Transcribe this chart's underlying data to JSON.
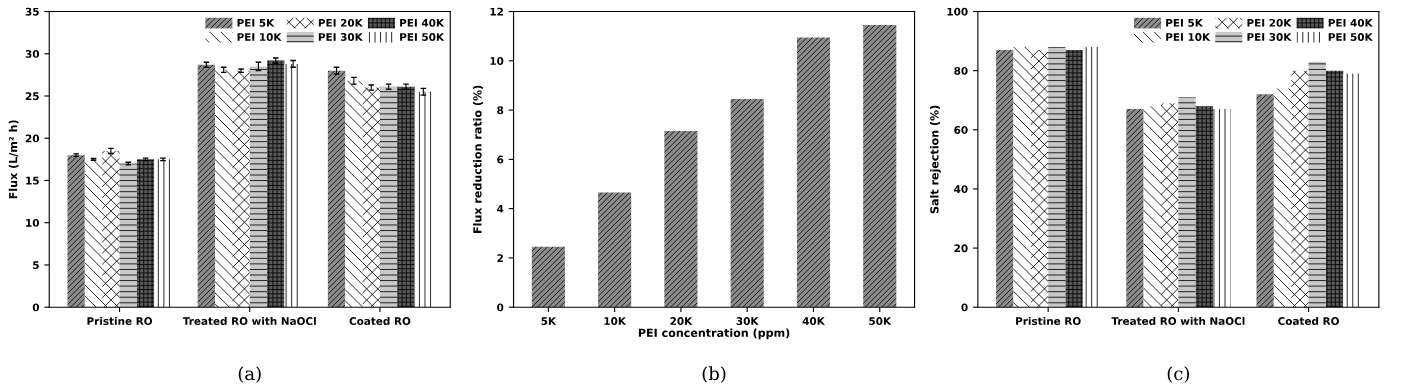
{
  "chart_data": [
    {
      "type": "bar",
      "ylabel": "Flux (L/m² h)",
      "annotations": [
        "(a)"
      ],
      "categories": [
        "Pristine RO",
        "Treated RO with NaOCl",
        "Coated RO"
      ],
      "ylim": [
        0,
        35
      ],
      "yticks": [
        0,
        5,
        10,
        15,
        20,
        25,
        30,
        35
      ],
      "legend": "top right",
      "grid": false,
      "series": [
        {
          "name": "PEI 5K",
          "color": "#8c8c8c",
          "values": [
            18.0,
            28.7,
            28.0
          ],
          "errors": [
            0.15,
            0.3,
            0.4
          ]
        },
        {
          "name": "PEI 10K",
          "color": "#ffffff",
          "values": [
            17.5,
            28.1,
            26.8
          ],
          "errors": [
            0.1,
            0.3,
            0.4
          ]
        },
        {
          "name": "PEI 20K",
          "color": "#ffffff",
          "values": [
            18.5,
            28.0,
            26.0
          ],
          "errors": [
            0.3,
            0.2,
            0.3
          ]
        },
        {
          "name": "PEI 30K",
          "color": "#c8c8c8",
          "values": [
            17.0,
            28.5,
            26.1
          ],
          "errors": [
            0.15,
            0.5,
            0.3
          ]
        },
        {
          "name": "PEI 40K",
          "color": "#5a5a5a",
          "values": [
            17.5,
            29.2,
            26.1
          ],
          "errors": [
            0.15,
            0.3,
            0.3
          ]
        },
        {
          "name": "PEI 50K",
          "color": "#ffffff",
          "values": [
            17.5,
            28.8,
            25.5
          ],
          "errors": [
            0.15,
            0.4,
            0.4
          ]
        }
      ]
    },
    {
      "type": "bar",
      "xlabel": "PEI concentration (ppm)",
      "ylabel": "Flux reduction ratio (%)",
      "annotations": [
        "(b)"
      ],
      "categories": [
        "5K",
        "10K",
        "20K",
        "30K",
        "40K",
        "50K"
      ],
      "ylim": [
        0,
        12
      ],
      "yticks": [
        0,
        2,
        4,
        6,
        8,
        10,
        12
      ],
      "legend": false,
      "grid": false,
      "series": [
        {
          "color": "#8c8c8c",
          "values": [
            2.45,
            4.65,
            7.15,
            8.45,
            10.95,
            11.45
          ]
        }
      ]
    },
    {
      "type": "bar",
      "ylabel": "Salt rejection (%)",
      "annotations": [
        "(c)"
      ],
      "categories": [
        "Pristine RO",
        "Treated RO with NaOCl",
        "Coated RO"
      ],
      "ylim": [
        0,
        100
      ],
      "yticks": [
        0,
        20,
        40,
        60,
        80,
        100
      ],
      "legend": "top right",
      "grid": false,
      "series": [
        {
          "name": "PEI 5K",
          "color": "#8c8c8c",
          "values": [
            87,
            67,
            72
          ]
        },
        {
          "name": "PEI 10K",
          "color": "#ffffff",
          "values": [
            88,
            68,
            74
          ]
        },
        {
          "name": "PEI 20K",
          "color": "#ffffff",
          "values": [
            87,
            69,
            80
          ]
        },
        {
          "name": "PEI 30K",
          "color": "#c8c8c8",
          "values": [
            88,
            71,
            83
          ]
        },
        {
          "name": "PEI 40K",
          "color": "#5a5a5a",
          "values": [
            87,
            68,
            80
          ]
        },
        {
          "name": "PEI 50K",
          "color": "#ffffff",
          "values": [
            88,
            67,
            79
          ]
        }
      ]
    }
  ]
}
